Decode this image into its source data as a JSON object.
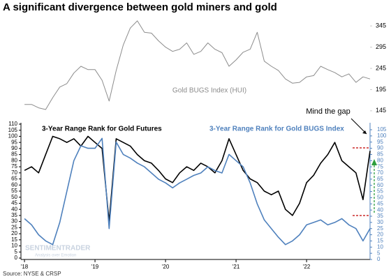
{
  "chart_data": [
    {
      "type": "line",
      "title": "A significant divergence between gold miners and gold",
      "x": [
        2018,
        2018.1,
        2018.2,
        2018.3,
        2018.4,
        2018.5,
        2018.6,
        2018.7,
        2018.8,
        2018.9,
        2019,
        2019.1,
        2019.2,
        2019.3,
        2019.4,
        2019.5,
        2019.6,
        2019.7,
        2019.8,
        2019.9,
        2020,
        2020.1,
        2020.2,
        2020.3,
        2020.4,
        2020.5,
        2020.6,
        2020.7,
        2020.8,
        2020.9,
        2021,
        2021.1,
        2021.2,
        2021.3,
        2021.4,
        2021.5,
        2021.6,
        2021.7,
        2021.8,
        2021.9,
        2022,
        2022.1,
        2022.2,
        2022.3,
        2022.4,
        2022.5,
        2022.6,
        2022.7,
        2022.8,
        2022.9
      ],
      "xlim": [
        2017.95,
        2022.9
      ],
      "ylim": [
        130,
        365
      ],
      "yticks": [
        145,
        195,
        245,
        295,
        345
      ],
      "y_axis_side": "right",
      "series": [
        {
          "name": "Gold BUGS Index (HUI)",
          "color": "#8c8c8c",
          "values": [
            160,
            160,
            152,
            148,
            176,
            201,
            209,
            234,
            250,
            242,
            242,
            217,
            168,
            240,
            300,
            340,
            357,
            330,
            328,
            310,
            295,
            285,
            290,
            305,
            278,
            285,
            305,
            290,
            282,
            250,
            265,
            283,
            290,
            330,
            262,
            250,
            240,
            220,
            210,
            212,
            225,
            228,
            250,
            242,
            235,
            225,
            232,
            212,
            225,
            220
          ]
        }
      ]
    },
    {
      "type": "line",
      "annotation": "Mind the gap",
      "source": "Source: NYSE & CRSP",
      "watermark": {
        "name": "SENTIMENTRADER",
        "tagline": "Analysis over Emotion"
      },
      "x": [
        2018,
        2018.1,
        2018.2,
        2018.3,
        2018.4,
        2018.5,
        2018.6,
        2018.7,
        2018.8,
        2018.9,
        2019,
        2019.1,
        2019.2,
        2019.3,
        2019.4,
        2019.5,
        2019.6,
        2019.7,
        2019.8,
        2019.9,
        2020,
        2020.1,
        2020.2,
        2020.3,
        2020.4,
        2020.5,
        2020.6,
        2020.7,
        2020.8,
        2020.9,
        2021,
        2021.1,
        2021.2,
        2021.3,
        2021.4,
        2021.5,
        2021.6,
        2021.7,
        2021.8,
        2021.9,
        2022,
        2022.1,
        2022.2,
        2022.3,
        2022.4,
        2022.5,
        2022.6,
        2022.7,
        2022.8,
        2022.9
      ],
      "xlim": [
        2017.95,
        2022.9
      ],
      "xticks": [
        {
          "value": 2018,
          "label": "'18"
        },
        {
          "value": 2019,
          "label": "'19"
        },
        {
          "value": 2020,
          "label": "'20"
        },
        {
          "value": 2021,
          "label": "'21"
        },
        {
          "value": 2022,
          "label": "'22"
        }
      ],
      "ylim": [
        0,
        110
      ],
      "yticks": [
        0,
        5,
        10,
        15,
        20,
        25,
        30,
        35,
        40,
        45,
        50,
        55,
        60,
        65,
        70,
        75,
        80,
        85,
        90,
        95,
        100,
        105,
        110
      ],
      "y2lim": [
        0,
        105
      ],
      "y2ticks": [
        0,
        5,
        10,
        15,
        20,
        25,
        30,
        35,
        40,
        45,
        50,
        55,
        60,
        65,
        70,
        75,
        80,
        85,
        90,
        95,
        100,
        105
      ],
      "series": [
        {
          "name": "3-Year Range Rank for Gold Futures",
          "color": "#000000",
          "values": [
            72,
            75,
            70,
            85,
            100,
            98,
            95,
            98,
            92,
            100,
            95,
            90,
            30,
            98,
            95,
            92,
            85,
            80,
            78,
            72,
            65,
            62,
            70,
            75,
            72,
            78,
            75,
            70,
            80,
            98,
            85,
            72,
            65,
            62,
            55,
            52,
            55,
            40,
            35,
            45,
            62,
            68,
            78,
            85,
            95,
            80,
            75,
            70,
            48,
            88
          ]
        },
        {
          "name": "3-Year Range Rank for Gold BUGS Index",
          "color": "#4f81bd",
          "axis": "y2",
          "values": [
            33,
            28,
            20,
            15,
            12,
            30,
            55,
            80,
            92,
            90,
            90,
            98,
            25,
            95,
            85,
            82,
            78,
            75,
            70,
            65,
            62,
            58,
            62,
            65,
            68,
            70,
            75,
            72,
            70,
            85,
            80,
            75,
            62,
            45,
            32,
            25,
            18,
            12,
            15,
            20,
            28,
            30,
            32,
            28,
            30,
            33,
            28,
            25,
            15,
            25
          ]
        }
      ]
    }
  ]
}
